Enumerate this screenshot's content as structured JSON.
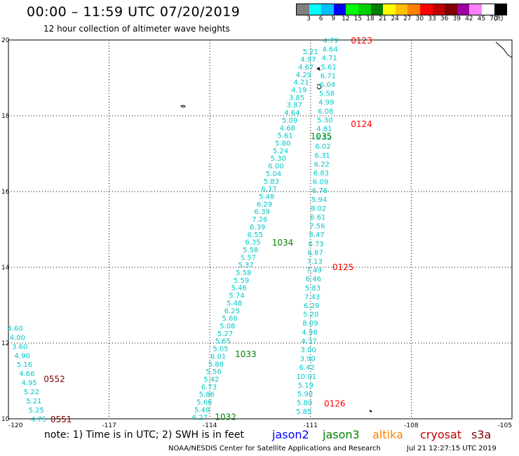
{
  "header": {
    "title": "00:00 – 11:59 UTC 07/20/2019",
    "subtitle": "12 hour collection of altimeter wave heights"
  },
  "legend": {
    "colors": [
      "#808080",
      "#00ffff",
      "#00c0ff",
      "#0000ff",
      "#00ff00",
      "#00d000",
      "#008000",
      "#ffff00",
      "#ffc000",
      "#ff8000",
      "#ff0000",
      "#c00000",
      "#800000",
      "#a000a0",
      "#ff80ff",
      "#ffffff",
      "#000000"
    ],
    "labels": [
      "3",
      "6",
      "9",
      "12",
      "15",
      "18",
      "21",
      "24",
      "27",
      "30",
      "33",
      "36",
      "39",
      "42",
      "45",
      "70"
    ],
    "units": "(ft)"
  },
  "map": {
    "x_ticks": [
      "-120",
      "-117",
      "-114",
      "-111",
      "-108",
      "-105"
    ],
    "y_ticks": [
      "20",
      "18",
      "16",
      "14",
      "12",
      "10"
    ],
    "time_labels": [
      {
        "text": "0123",
        "lon": -109.8,
        "lat": 19.98,
        "color": "#ff0000"
      },
      {
        "text": "0124",
        "lon": -109.8,
        "lat": 17.78,
        "color": "#ff0000"
      },
      {
        "text": "1035",
        "lon": -111.0,
        "lat": 17.45,
        "color": "#008000"
      },
      {
        "text": "1034",
        "lon": -112.15,
        "lat": 14.65,
        "color": "#008000"
      },
      {
        "text": "0125",
        "lon": -110.35,
        "lat": 14.0,
        "color": "#ff0000"
      },
      {
        "text": "1033",
        "lon": -113.25,
        "lat": 11.7,
        "color": "#008000"
      },
      {
        "text": "0552",
        "lon": -118.95,
        "lat": 11.05,
        "color": "#800000"
      },
      {
        "text": "0126",
        "lon": -110.6,
        "lat": 10.4,
        "color": "#ff0000"
      },
      {
        "text": "1032",
        "lon": -113.85,
        "lat": 10.05,
        "color": "#008000"
      },
      {
        "text": "0551",
        "lon": -118.75,
        "lat": 9.98,
        "color": "#800000"
      }
    ],
    "tracks": [
      {
        "name": "track-0551-0552",
        "color": "#00c8c8",
        "start": {
          "lon": -119.8,
          "lat": 12.4
        },
        "end": {
          "lon": -119.1,
          "lat": 10.0
        },
        "values": [
          "4.60",
          "4.00",
          "3.60",
          "4.90",
          "5.16",
          "4.66",
          "4.95",
          "5.22",
          "5.21",
          "5.25",
          "4.75"
        ]
      },
      {
        "name": "track-1032-1035",
        "color": "#00c8c8",
        "start": {
          "lon": -111.0,
          "lat": 19.7
        },
        "end": {
          "lon": -114.3,
          "lat": 10.05
        },
        "values": [
          "5.21",
          "4.97",
          "4.67",
          "4.29",
          "4.21",
          "4.19",
          "3.85",
          "3.87",
          "4.64",
          "5.09",
          "4.68",
          "5.61",
          "5.80",
          "5.24",
          "5.30",
          "6.00",
          "5.04",
          "5.83",
          "6.17",
          "5.48",
          "6.29",
          "6.39",
          "7.26",
          "6.39",
          "6.55",
          "6.35",
          "5.58",
          "5.57",
          "5.37",
          "5.58",
          "5.59",
          "5.46",
          "5.74",
          "5.48",
          "6.25",
          "5.66",
          "5.08",
          "5.27",
          "5.65",
          "5.05",
          "6.01",
          "5.88",
          "5.56",
          "5.42",
          "6.73",
          "5.86",
          "5.66",
          "5.48",
          "6.27"
        ]
      },
      {
        "name": "track-0123-0126",
        "color": "#00c8c8",
        "start": {
          "lon": -110.4,
          "lat": 20.0
        },
        "end": {
          "lon": -111.2,
          "lat": 10.2
        },
        "values": [
          "4.79",
          "4.64",
          "4.71",
          "5.61",
          "6.71",
          "6.04",
          "5.58",
          "4.99",
          "6.08",
          "5.30",
          "4.81",
          "5.52",
          "6.02",
          "6.31",
          "6.22",
          "6.83",
          "6.09",
          "6.76",
          "5.94",
          "8.02",
          "6.61",
          "7.56",
          "8.47",
          "6.73",
          "6.87",
          "7.13",
          "7.49",
          "6.46",
          "5.83",
          "7.43",
          "6.29",
          "5.20",
          "8.09",
          "4.98",
          "4.37",
          "3.00",
          "3.90",
          "6.42",
          "10.01",
          "5.19",
          "5.90",
          "5.80",
          "5.85"
        ]
      }
    ]
  },
  "footer": {
    "note": "note:  1) Time is in UTC;  2) SWH is in feet",
    "sats": [
      {
        "name": "jason2",
        "color": "#0000ff"
      },
      {
        "name": "jason3",
        "color": "#008000"
      },
      {
        "name": "altika",
        "color": "#ff8000"
      },
      {
        "name": "cryosat",
        "color": "#c00000"
      },
      {
        "name": "s3a",
        "color": "#800000"
      }
    ],
    "credit": "NOAA/NESDIS Center for Satellite Applications and Research",
    "timestamp": "Jul 21 12:27:15 UTC 2019"
  }
}
